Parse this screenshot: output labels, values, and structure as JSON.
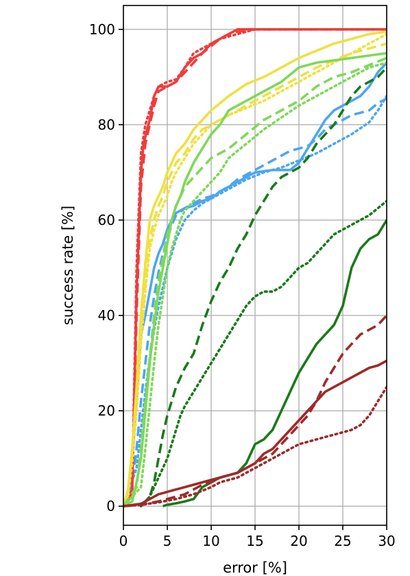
{
  "chart_data": {
    "type": "line",
    "title": "",
    "xlabel": "error [%]",
    "ylabel": "success rate [%]",
    "xlim": [
      0,
      30
    ],
    "ylim": [
      -4,
      105
    ],
    "x_ticks": [
      0,
      5,
      10,
      15,
      20,
      25,
      30
    ],
    "y_ticks": [
      0,
      20,
      40,
      60,
      80,
      100
    ],
    "grid": true,
    "legend": "none",
    "series": [
      {
        "color": "#4da6f0",
        "style": "solid",
        "x": [
          0,
          0.8,
          1.2,
          1.6,
          2.0,
          2.5,
          3.0,
          3.5,
          4.0,
          4.5,
          5.0,
          5.5,
          6.0,
          7.0,
          8.0,
          9.0,
          10.0,
          11.0,
          12.0,
          13.0,
          15.0,
          17.0,
          19.0,
          20.0,
          21.0,
          22.0,
          23.0,
          24.0,
          25.0,
          26.0,
          27.0,
          28.0,
          29.0,
          30.0
        ],
        "y": [
          0,
          5,
          15,
          25,
          36,
          40,
          45,
          50,
          53,
          55,
          58,
          60,
          61.5,
          62.5,
          63,
          64,
          64.5,
          66,
          67,
          68,
          70,
          70.5,
          70.5,
          72,
          75,
          78,
          81,
          83,
          84,
          85,
          86,
          88,
          91,
          93
        ]
      },
      {
        "color": "#4da6f0",
        "style": "dashed",
        "x": [
          0,
          1.0,
          1.5,
          2.0,
          2.5,
          3.0,
          3.5,
          4.0,
          4.5,
          5.0,
          5.5,
          6.0,
          7.0,
          8.0,
          9.0,
          10.0,
          11.0,
          12.0,
          13.0,
          15.0,
          17.0,
          19.0,
          20.0,
          21.0,
          22.0,
          23.0,
          24.0,
          25.0,
          26.0,
          27.0,
          28.0,
          29.0,
          30.0
        ],
        "y": [
          0,
          5,
          12,
          22,
          30,
          38,
          44,
          49,
          53,
          56,
          59,
          61,
          62.5,
          63.5,
          64.5,
          65,
          66,
          67,
          68.5,
          70.5,
          72.5,
          74.5,
          75,
          75.5,
          77,
          79,
          80,
          81,
          82,
          82.5,
          83,
          84.5,
          85.5
        ]
      },
      {
        "color": "#4da6f0",
        "style": "dotted",
        "x": [
          0,
          1.5,
          2.0,
          2.5,
          3.0,
          3.5,
          4.0,
          4.5,
          5.0,
          5.5,
          6.0,
          6.5,
          7.0,
          7.5,
          8.0,
          9.0,
          10.0,
          12.0,
          14.0,
          16.0,
          18.0,
          20.0,
          22.0,
          24.0,
          26.0,
          28.0,
          29.0,
          30.0
        ],
        "y": [
          0,
          8,
          16,
          24,
          31,
          37,
          42,
          46,
          50,
          53,
          56,
          58,
          60,
          61,
          62,
          63.5,
          64.5,
          66.5,
          68.5,
          70,
          71,
          72.5,
          74,
          76,
          78,
          80.5,
          83,
          86
        ]
      },
      {
        "color": "#f03c3c",
        "style": "solid",
        "x": [
          0,
          0.5,
          1.0,
          1.5,
          2.0,
          2.3,
          2.7,
          3.0,
          3.5,
          4.0,
          5.0,
          6.0,
          7.0,
          8.0,
          9.0,
          10.0,
          11.0,
          12.0,
          13.0,
          15.0,
          20.0,
          25.0,
          30.0
        ],
        "y": [
          0,
          1,
          3,
          45,
          70,
          76,
          79,
          81,
          86,
          88,
          88,
          89,
          92,
          94,
          95,
          97,
          98,
          99,
          100,
          100,
          100,
          100,
          100
        ]
      },
      {
        "color": "#f03c3c",
        "style": "dashed",
        "x": [
          0,
          0.5,
          1.0,
          1.5,
          2.0,
          2.5,
          3.0,
          3.5,
          4.0,
          5.0,
          6.0,
          7.0,
          8.0,
          9.0,
          10.0,
          11.0,
          12.0,
          13.0,
          15.0,
          20.0,
          25.0,
          30.0
        ],
        "y": [
          0,
          1,
          3,
          40,
          67,
          76,
          80,
          84,
          87,
          88,
          89,
          91,
          93,
          95,
          96.5,
          98,
          99,
          99.5,
          100,
          100,
          100,
          100
        ]
      },
      {
        "color": "#f03c3c",
        "style": "dotted",
        "x": [
          0,
          0.5,
          1.0,
          1.5,
          2.0,
          2.5,
          3.0,
          3.5,
          4.0,
          5.0,
          6.0,
          7.0,
          8.0,
          9.0,
          10.0,
          11.0,
          12.0,
          13.0,
          15.0,
          20.0,
          25.0,
          30.0
        ],
        "y": [
          0,
          1,
          4,
          50,
          74,
          80,
          83,
          86,
          88,
          89,
          89.5,
          92,
          95,
          96,
          97,
          98,
          98.5,
          99,
          100,
          100,
          100,
          100
        ]
      },
      {
        "color": "#f0e040",
        "style": "solid",
        "x": [
          0,
          0.5,
          1.0,
          1.5,
          2.0,
          2.5,
          3.0,
          3.5,
          4.0,
          4.5,
          5.0,
          5.5,
          6.0,
          7.0,
          8.0,
          9.0,
          10.0,
          12.0,
          14.0,
          16.0,
          18.0,
          20.0,
          22.0,
          24.0,
          26.0,
          28.0,
          30.0
        ],
        "y": [
          0,
          3,
          12,
          25,
          40,
          51,
          60,
          63,
          65,
          67,
          70,
          72,
          74,
          76,
          79,
          81,
          83,
          86,
          88.5,
          90,
          92,
          94,
          95.5,
          97,
          98,
          99,
          99.5
        ]
      },
      {
        "color": "#f0e040",
        "style": "dashed",
        "x": [
          0,
          0.5,
          1.0,
          1.5,
          2.0,
          2.5,
          3.0,
          3.5,
          4.0,
          4.5,
          5.0,
          5.5,
          6.0,
          7.0,
          8.0,
          9.0,
          10.0,
          12.0,
          14.0,
          16.0,
          18.0,
          20.0,
          22.0,
          24.0,
          26.0,
          28.0,
          30.0
        ],
        "y": [
          0,
          3,
          11,
          22,
          36,
          47,
          56,
          60,
          63,
          65,
          68,
          70,
          72,
          74,
          77,
          79,
          80,
          82,
          84,
          86,
          88,
          90,
          92,
          93.5,
          95,
          96,
          97
        ]
      },
      {
        "color": "#f0e040",
        "style": "dotted",
        "x": [
          0,
          0.5,
          1.0,
          1.5,
          2.0,
          2.5,
          3.0,
          3.5,
          4.0,
          4.5,
          5.0,
          5.5,
          6.0,
          7.0,
          8.0,
          9.0,
          10.0,
          12.0,
          14.0,
          16.0,
          18.0,
          20.0,
          22.0,
          24.0,
          26.0,
          28.0,
          30.0
        ],
        "y": [
          0,
          2,
          9,
          20,
          34,
          45,
          54,
          58,
          61,
          63,
          65,
          68,
          70,
          73,
          76,
          78,
          80,
          82,
          83.5,
          85,
          87,
          89,
          91,
          93,
          95,
          97,
          99
        ]
      },
      {
        "color": "#7ed957",
        "style": "solid",
        "x": [
          0,
          1.0,
          1.5,
          2.0,
          2.5,
          3.0,
          3.5,
          4.0,
          4.5,
          5.0,
          5.5,
          6.0,
          6.5,
          7.0,
          8.0,
          9.0,
          10.0,
          11.0,
          12.0,
          14.0,
          16.0,
          18.0,
          20.0,
          22.0,
          24.0,
          26.0,
          28.0,
          30.0
        ],
        "y": [
          0,
          1,
          5,
          10,
          20,
          30,
          38,
          45,
          50,
          55,
          60,
          63,
          65,
          68,
          72,
          75,
          78,
          80,
          83,
          85,
          87,
          89,
          92,
          93,
          93.5,
          94,
          94.5,
          95
        ]
      },
      {
        "color": "#7ed957",
        "style": "dashed",
        "x": [
          0,
          1.5,
          2.0,
          2.5,
          3.0,
          3.5,
          4.0,
          4.5,
          5.0,
          5.5,
          6.0,
          6.5,
          7.0,
          8.0,
          9.0,
          10.0,
          12.0,
          14.0,
          16.0,
          18.0,
          20.0,
          22.0,
          24.0,
          26.0,
          28.0,
          30.0
        ],
        "y": [
          0,
          4,
          12,
          22,
          31,
          40,
          47,
          52,
          57,
          60,
          63,
          65,
          67,
          69,
          71,
          73,
          75,
          78,
          81,
          83,
          85,
          88,
          90,
          91,
          92.5,
          94
        ]
      },
      {
        "color": "#7ed957",
        "style": "dotted",
        "x": [
          0,
          2.0,
          2.5,
          3.0,
          3.5,
          4.0,
          4.5,
          5.0,
          5.5,
          6.0,
          6.5,
          7.0,
          8.0,
          9.0,
          10.0,
          11.0,
          12.0,
          14.0,
          16.0,
          18.0,
          20.0,
          22.0,
          24.0,
          26.0,
          28.0,
          30.0
        ],
        "y": [
          0,
          4,
          12,
          21,
          30,
          38,
          44,
          50,
          54,
          57,
          60,
          62,
          64,
          66,
          68,
          70,
          73,
          76,
          79,
          81.5,
          84,
          86,
          88,
          90,
          92,
          93
        ]
      },
      {
        "color": "#1a7a1a",
        "style": "solid",
        "x": [
          4.5,
          5.0,
          6.0,
          7.0,
          8.0,
          9.0,
          10.0,
          11.0,
          12.0,
          13.0,
          14.0,
          15.0,
          16.0,
          17.0,
          18.0,
          19.0,
          20.0,
          21.0,
          22.0,
          23.0,
          24.0,
          25.0,
          26.0,
          27.0,
          28.0,
          29.0,
          30.0
        ],
        "y": [
          0,
          0.3,
          0.6,
          1,
          1.5,
          4,
          5,
          6,
          6.5,
          7,
          9,
          13,
          14,
          16,
          20,
          24,
          28,
          31,
          34,
          36,
          38,
          42,
          50,
          54,
          56,
          57,
          60
        ]
      },
      {
        "color": "#1a7a1a",
        "style": "dashed",
        "x": [
          2.0,
          3.0,
          3.5,
          4.0,
          4.5,
          5.0,
          5.5,
          6.0,
          6.5,
          7.0,
          8.0,
          9.0,
          10.0,
          11.0,
          12.0,
          13.0,
          14.0,
          15.0,
          16.0,
          17.0,
          18.0,
          19.0,
          20.0,
          21.0,
          22.0,
          23.0,
          24.0,
          25.0,
          26.0,
          27.0,
          28.0,
          29.0,
          30.0
        ],
        "y": [
          0,
          2,
          5,
          10,
          15,
          19,
          22,
          25,
          27,
          29,
          32,
          38,
          43,
          47,
          50,
          54,
          57,
          61,
          64,
          67,
          69,
          70,
          71,
          73,
          76,
          78,
          80,
          83,
          86,
          88,
          89,
          90,
          92
        ]
      },
      {
        "color": "#1a7a1a",
        "style": "dotted",
        "x": [
          2.0,
          3.0,
          4.0,
          5.0,
          5.5,
          6.0,
          6.5,
          7.0,
          8.0,
          9.0,
          10.0,
          11.0,
          12.0,
          13.0,
          14.0,
          15.0,
          16.0,
          17.0,
          18.0,
          19.0,
          20.0,
          21.0,
          22.0,
          23.0,
          24.0,
          25.0,
          26.0,
          27.0,
          28.0,
          29.0,
          30.0
        ],
        "y": [
          0,
          2,
          6,
          10,
          13,
          16,
          19,
          21,
          24,
          27,
          30,
          33,
          36,
          39,
          42,
          44,
          45,
          45,
          46,
          48,
          50,
          51,
          53,
          55,
          57,
          58,
          59,
          60,
          61,
          62.5,
          64
        ]
      },
      {
        "color": "#9e2a2a",
        "style": "solid",
        "x": [
          0,
          2.0,
          3.0,
          4.0,
          5.0,
          6.0,
          7.0,
          8.0,
          9.0,
          10.0,
          11.0,
          12.0,
          13.0,
          14.0,
          15.0,
          16.0,
          17.0,
          18.0,
          19.0,
          20.0,
          21.0,
          22.0,
          23.0,
          24.0,
          25.0,
          26.0,
          27.0,
          28.0,
          29.0,
          30.0
        ],
        "y": [
          0,
          0.5,
          1.5,
          2.5,
          3,
          3.5,
          4,
          4.5,
          5,
          5.5,
          6,
          6.5,
          7,
          8,
          9,
          11,
          12,
          14,
          16,
          18,
          20,
          22,
          24,
          25,
          26,
          27,
          28,
          29,
          29.5,
          30.5
        ]
      },
      {
        "color": "#9e2a2a",
        "style": "dashed",
        "x": [
          0,
          2.0,
          4.0,
          6.0,
          7.0,
          8.0,
          9.0,
          10.0,
          11.0,
          12.0,
          13.0,
          14.0,
          15.0,
          16.0,
          17.0,
          18.0,
          19.0,
          20.0,
          21.0,
          22.0,
          23.0,
          24.0,
          25.0,
          26.0,
          27.0,
          28.0,
          29.0,
          30.0
        ],
        "y": [
          0,
          0.3,
          1,
          2,
          2.5,
          3.5,
          4.5,
          5,
          6,
          6.5,
          7,
          8,
          9,
          10,
          11,
          13,
          15,
          17,
          19,
          22,
          26,
          29,
          32,
          34,
          36,
          37,
          38,
          40
        ]
      },
      {
        "color": "#9e2a2a",
        "style": "dotted",
        "x": [
          0,
          2.0,
          4.0,
          6.0,
          8.0,
          10.0,
          11.0,
          12.0,
          13.0,
          14.0,
          15.0,
          16.0,
          17.0,
          18.0,
          19.0,
          20.0,
          21.0,
          22.0,
          23.0,
          24.0,
          25.0,
          26.0,
          27.0,
          28.0,
          29.0,
          30.0
        ],
        "y": [
          0,
          0.3,
          0.8,
          1.5,
          2.5,
          4,
          5,
          5.5,
          6,
          7,
          8,
          9,
          10,
          11,
          12,
          13,
          13.5,
          14,
          14.5,
          15,
          15.5,
          16,
          17,
          19,
          22,
          25
        ]
      }
    ]
  }
}
